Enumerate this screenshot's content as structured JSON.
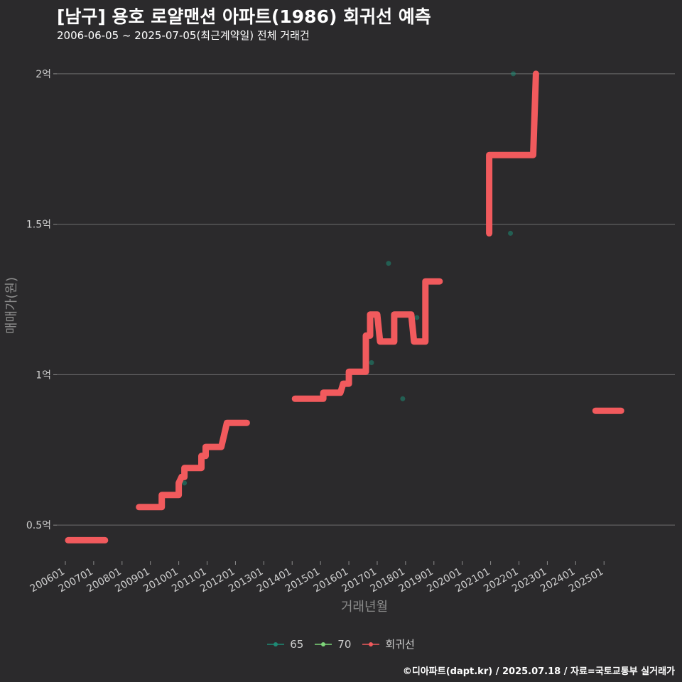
{
  "chart_data": {
    "type": "line",
    "title": "[남구] 용호 로얄맨션 아파트(1986) 회귀선 예측",
    "subtitle": "2006-06-05 ~ 2025-07-05(최근계약일) 전체 거래건",
    "xlabel": "거래년월",
    "ylabel": "매매가(원)",
    "x_ticks": [
      "200601",
      "200701",
      "200801",
      "200901",
      "201001",
      "201101",
      "201201",
      "201301",
      "201401",
      "201501",
      "201601",
      "201701",
      "201801",
      "201901",
      "202001",
      "202101",
      "202201",
      "202301",
      "202401",
      "202501"
    ],
    "y_ticks": [
      {
        "value": 0.5,
        "label": "0.5억"
      },
      {
        "value": 1.0,
        "label": "1억"
      },
      {
        "value": 1.5,
        "label": "1.5억"
      },
      {
        "value": 2.0,
        "label": "2억"
      }
    ],
    "xlim": [
      2005.7,
      2027.5
    ],
    "ylim": [
      0.38,
      2.08
    ],
    "grid": true,
    "legend": [
      {
        "name": "65",
        "color": "#1e8a75"
      },
      {
        "name": "70",
        "color": "#7ed67a"
      },
      {
        "name": "회귀선",
        "color": "#f15a5d"
      }
    ],
    "series": [
      {
        "name": "65",
        "type": "scatter",
        "color": "#1e8a75",
        "points": [
          {
            "x": 2010.2,
            "y": 0.64
          },
          {
            "x": 2016.8,
            "y": 1.04
          },
          {
            "x": 2017.4,
            "y": 1.37
          },
          {
            "x": 2017.9,
            "y": 0.92
          },
          {
            "x": 2018.4,
            "y": 1.19
          },
          {
            "x": 2021.7,
            "y": 1.47
          },
          {
            "x": 2021.8,
            "y": 2.0
          }
        ]
      },
      {
        "name": "회귀선",
        "type": "step",
        "color": "#f15a5d",
        "segments": [
          [
            [
              2006.1,
              0.45
            ],
            [
              2007.4,
              0.45
            ]
          ],
          [
            [
              2008.6,
              0.56
            ],
            [
              2009.4,
              0.56
            ],
            [
              2009.4,
              0.6
            ],
            [
              2010.0,
              0.6
            ],
            [
              2010.0,
              0.64
            ],
            [
              2010.1,
              0.66
            ],
            [
              2010.2,
              0.66
            ],
            [
              2010.2,
              0.69
            ],
            [
              2010.8,
              0.69
            ],
            [
              2010.8,
              0.73
            ],
            [
              2010.95,
              0.73
            ],
            [
              2010.95,
              0.76
            ],
            [
              2011.5,
              0.76
            ],
            [
              2011.6,
              0.8
            ],
            [
              2011.7,
              0.84
            ],
            [
              2012.4,
              0.84
            ]
          ],
          [
            [
              2014.1,
              0.92
            ],
            [
              2015.1,
              0.92
            ],
            [
              2015.1,
              0.94
            ],
            [
              2015.7,
              0.94
            ],
            [
              2015.8,
              0.97
            ],
            [
              2016.0,
              0.97
            ],
            [
              2016.0,
              1.01
            ],
            [
              2016.6,
              1.01
            ],
            [
              2016.6,
              1.13
            ],
            [
              2016.75,
              1.13
            ],
            [
              2016.75,
              1.2
            ],
            [
              2017.0,
              1.2
            ],
            [
              2017.1,
              1.11
            ],
            [
              2017.6,
              1.11
            ],
            [
              2017.6,
              1.2
            ],
            [
              2018.2,
              1.2
            ],
            [
              2018.3,
              1.11
            ],
            [
              2018.7,
              1.11
            ],
            [
              2018.7,
              1.31
            ],
            [
              2019.2,
              1.31
            ]
          ],
          [
            [
              2020.95,
              1.47
            ],
            [
              2020.95,
              1.73
            ],
            [
              2022.5,
              1.73
            ],
            [
              2022.6,
              2.0
            ]
          ],
          [
            [
              2024.7,
              0.88
            ],
            [
              2025.6,
              0.88
            ]
          ]
        ]
      }
    ]
  },
  "caption": "©디아파트(dapt.kr) / 2025.07.18 / 자료=국토교통부 실거래가"
}
